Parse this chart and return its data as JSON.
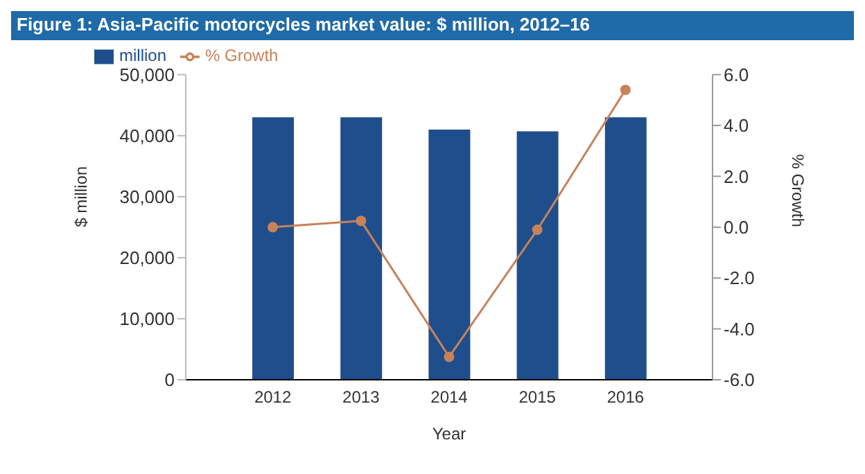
{
  "chart_data": {
    "type": "bar",
    "title": "Figure 1: Asia-Pacific motorcycles market value: $ million, 2012–16",
    "categories": [
      "2012",
      "2013",
      "2014",
      "2015",
      "2016"
    ],
    "xlabel": "Year",
    "ylabel": "$ million",
    "y2label": "% Growth",
    "series": [
      {
        "name": "million",
        "color": "#1f4e8c",
        "values": [
          43000,
          43000,
          41000,
          40700,
          43000
        ]
      },
      {
        "name": "% Growth",
        "type": "line",
        "axis": "y2",
        "color": "#c8825a",
        "values": [
          0.0,
          0.25,
          -5.1,
          -0.1,
          5.4
        ]
      }
    ],
    "ylim": [
      0,
      50000
    ],
    "yticks": [
      {
        "value": 0,
        "label": "0"
      },
      {
        "value": 10000,
        "label": "10,000"
      },
      {
        "value": 20000,
        "label": "20,000"
      },
      {
        "value": 30000,
        "label": "30,000"
      },
      {
        "value": 40000,
        "label": "40,000"
      },
      {
        "value": 50000,
        "label": "50,000"
      }
    ],
    "y2lim": [
      -6,
      6
    ],
    "y2ticks": [
      {
        "value": -6,
        "label": "-6.0"
      },
      {
        "value": -4,
        "label": "-4.0"
      },
      {
        "value": -2,
        "label": "-2.0"
      },
      {
        "value": 0,
        "label": "0.0"
      },
      {
        "value": 2,
        "label": "2.0"
      },
      {
        "value": 4,
        "label": "4.0"
      },
      {
        "value": 6,
        "label": "6.0"
      }
    ],
    "legend": "top left",
    "marker": "circle",
    "grid": false
  }
}
